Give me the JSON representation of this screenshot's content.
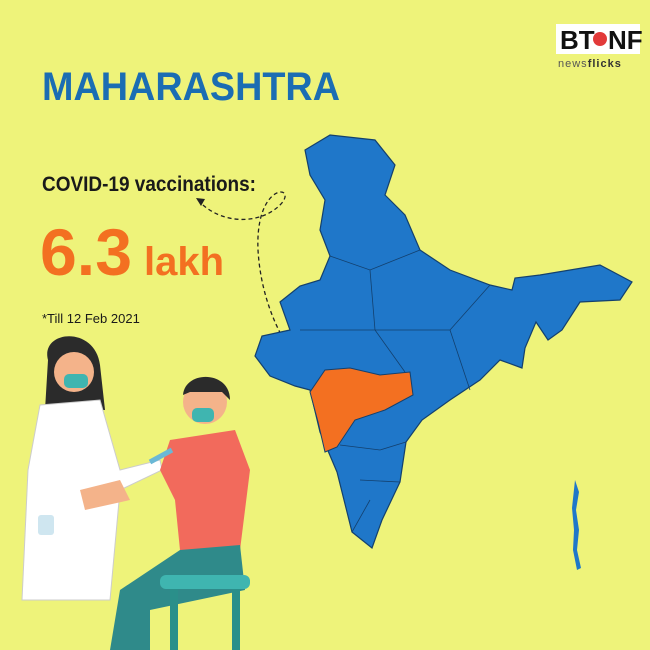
{
  "logo": {
    "left": "BT",
    "right": "NF",
    "tagline_a": "news",
    "tagline_b": "flicks"
  },
  "title": "MAHARASHTRA",
  "stat": {
    "label": "COVID-19 vaccinations:",
    "value": 6.3,
    "unit": "lakh"
  },
  "footnote": "*Till 12 Feb 2021"
}
